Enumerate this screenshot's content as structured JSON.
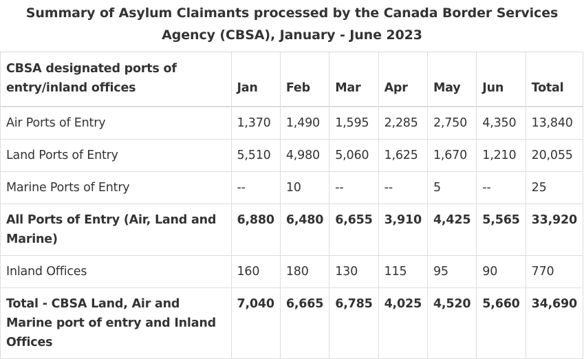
{
  "title": "Summary of Asylum Claimants processed by the Canada Border Services Agency (CBSA), January - June 2023",
  "table": {
    "headers": [
      "CBSA designated ports of entry/inland offices",
      "Jan",
      "Feb",
      "Mar",
      "Apr",
      "May",
      "Jun",
      "Total"
    ],
    "rows": [
      {
        "cells": [
          "Air Ports of Entry",
          "1,370",
          "1,490",
          "1,595",
          "2,285",
          "2,750",
          "4,350",
          "13,840"
        ],
        "bold": false
      },
      {
        "cells": [
          "Land Ports of Entry",
          "5,510",
          "4,980",
          "5,060",
          "1,625",
          "1,670",
          "1,210",
          "20,055"
        ],
        "bold": false
      },
      {
        "cells": [
          "Marine Ports of Entry",
          "--",
          "10",
          "--",
          "--",
          "5",
          "--",
          "25"
        ],
        "bold": false
      },
      {
        "cells": [
          "All Ports of Entry (Air, Land and Marine)",
          "6,880",
          "6,480",
          "6,655",
          "3,910",
          "4,425",
          "5,565",
          "33,920"
        ],
        "bold": true
      },
      {
        "cells": [
          "Inland Offices",
          "160",
          "180",
          "130",
          "115",
          "95",
          "90",
          "770"
        ],
        "bold": false
      },
      {
        "cells": [
          "Total - CBSA Land, Air and Marine port of entry and Inland Offices",
          "7,040",
          "6,665",
          "6,785",
          "4,025",
          "4,520",
          "5,660",
          "34,690"
        ],
        "bold": true
      }
    ]
  }
}
